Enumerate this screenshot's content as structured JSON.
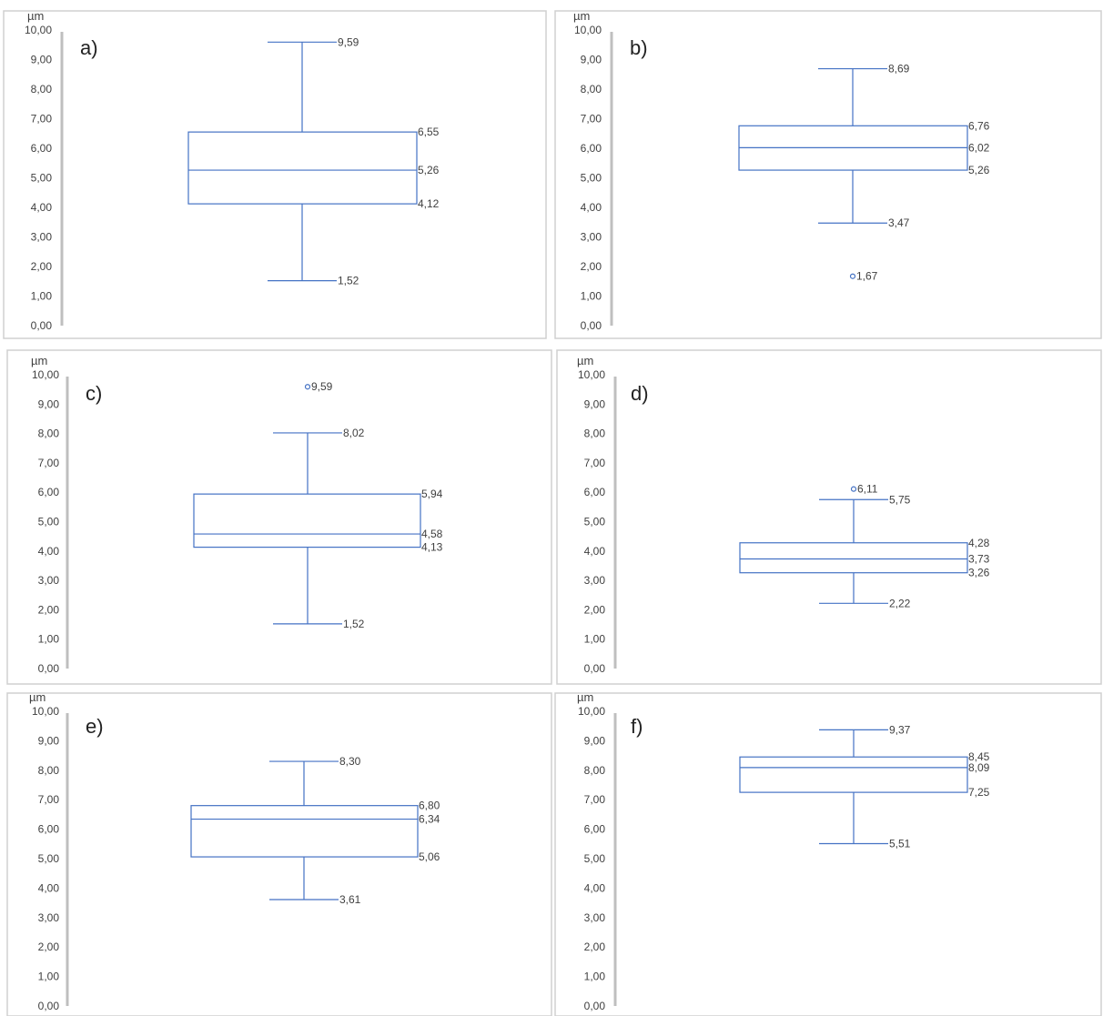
{
  "chart_data": [
    {
      "type": "boxplot",
      "panel_label": "a)",
      "unit": "µm",
      "y_ticks": [
        "0,00",
        "1,00",
        "2,00",
        "3,00",
        "4,00",
        "5,00",
        "6,00",
        "7,00",
        "8,00",
        "9,00",
        "10,00"
      ],
      "ylim": [
        0,
        10
      ],
      "values": {
        "min": 1.52,
        "q1": 4.12,
        "median": 5.26,
        "q3": 6.55,
        "max": 9.59
      },
      "labels": {
        "min": "1,52",
        "q1": "4,12",
        "median": "5,26",
        "q3": "6,55",
        "max": "9,59"
      },
      "outliers": []
    },
    {
      "type": "boxplot",
      "panel_label": "b)",
      "unit": "µm",
      "y_ticks": [
        "0,00",
        "1,00",
        "2,00",
        "3,00",
        "4,00",
        "5,00",
        "6,00",
        "7,00",
        "8,00",
        "9,00",
        "10,00"
      ],
      "ylim": [
        0,
        10
      ],
      "values": {
        "min": 3.47,
        "q1": 5.26,
        "median": 6.02,
        "q3": 6.76,
        "max": 8.69
      },
      "labels": {
        "min": "3,47",
        "q1": "5,26",
        "median": "6,02",
        "q3": "6,76",
        "max": "8,69"
      },
      "outliers": [
        {
          "value": 1.67,
          "label": "1,67"
        }
      ]
    },
    {
      "type": "boxplot",
      "panel_label": "c)",
      "unit": "µm",
      "y_ticks": [
        "0,00",
        "1,00",
        "2,00",
        "3,00",
        "4,00",
        "5,00",
        "6,00",
        "7,00",
        "8,00",
        "9,00",
        "10,00"
      ],
      "ylim": [
        0,
        10
      ],
      "values": {
        "min": 1.52,
        "q1": 4.13,
        "median": 4.58,
        "q3": 5.94,
        "max": 8.02
      },
      "labels": {
        "min": "1,52",
        "q1": "4,13",
        "median": "4,58",
        "q3": "5,94",
        "max": "8,02"
      },
      "outliers": [
        {
          "value": 9.59,
          "label": "9,59"
        }
      ]
    },
    {
      "type": "boxplot",
      "panel_label": "d)",
      "unit": "µm",
      "y_ticks": [
        "0,00",
        "1,00",
        "2,00",
        "3,00",
        "4,00",
        "5,00",
        "6,00",
        "7,00",
        "8,00",
        "9,00",
        "10,00"
      ],
      "ylim": [
        0,
        10
      ],
      "values": {
        "min": 2.22,
        "q1": 3.26,
        "median": 3.73,
        "q3": 4.28,
        "max": 5.75
      },
      "labels": {
        "min": "2,22",
        "q1": "3,26",
        "median": "3,73",
        "q3": "4,28",
        "max": "5,75"
      },
      "outliers": [
        {
          "value": 6.11,
          "label": "6,11"
        }
      ]
    },
    {
      "type": "boxplot",
      "panel_label": "e)",
      "unit": "µm",
      "y_ticks": [
        "0,00",
        "1,00",
        "2,00",
        "3,00",
        "4,00",
        "5,00",
        "6,00",
        "7,00",
        "8,00",
        "9,00",
        "10,00"
      ],
      "ylim": [
        0,
        10
      ],
      "values": {
        "min": 3.61,
        "q1": 5.06,
        "median": 6.34,
        "q3": 6.8,
        "max": 8.3
      },
      "labels": {
        "min": "3,61",
        "q1": "5,06",
        "median": "6,34",
        "q3": "6,80",
        "max": "8,30"
      },
      "outliers": []
    },
    {
      "type": "boxplot",
      "panel_label": "f)",
      "unit": "µm",
      "y_ticks": [
        "0,00",
        "1,00",
        "2,00",
        "3,00",
        "4,00",
        "5,00",
        "6,00",
        "7,00",
        "8,00",
        "9,00",
        "10,00"
      ],
      "ylim": [
        0,
        10
      ],
      "values": {
        "min": 5.51,
        "q1": 7.25,
        "median": 8.09,
        "q3": 8.45,
        "max": 9.37
      },
      "labels": {
        "min": "5,51",
        "q1": "7,25",
        "median": "8,09",
        "q3": "8,45",
        "max": "9,37"
      },
      "outliers": []
    }
  ],
  "colors": {
    "box": "#4472C4",
    "text": "#404040",
    "axis": "#bfbfbf",
    "frame": "#d0d0d0"
  }
}
